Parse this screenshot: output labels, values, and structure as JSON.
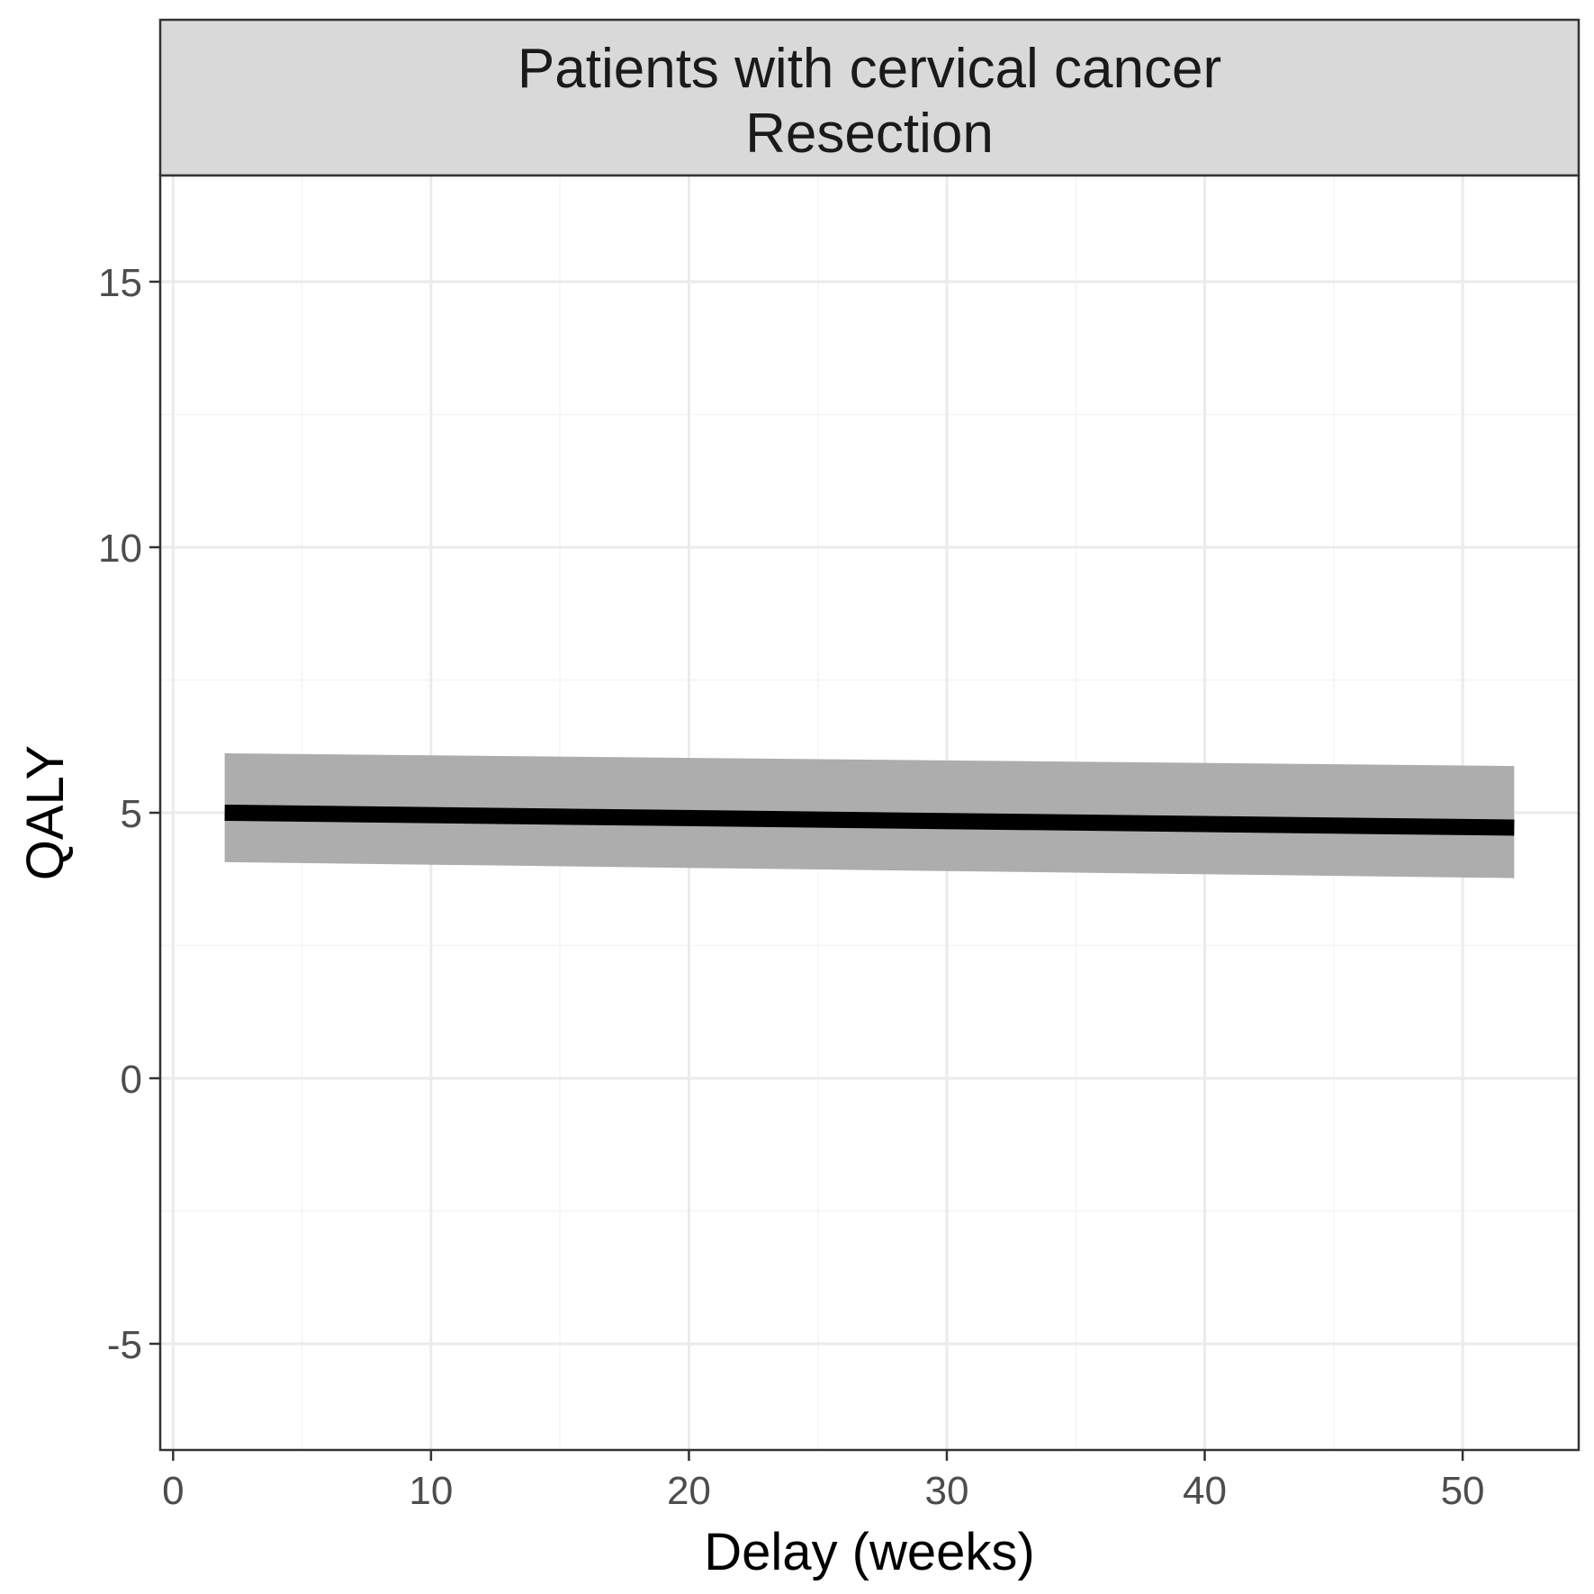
{
  "chart_data": {
    "type": "line",
    "title": "Patients with cervical cancer",
    "subtitle": "Resection",
    "xlabel": "Delay (weeks)",
    "ylabel": "QALY",
    "xlim": [
      -0.5,
      54.5
    ],
    "ylim": [
      -7.0,
      17.0
    ],
    "x_ticks": [
      0,
      10,
      20,
      30,
      40,
      50
    ],
    "x_tick_labels": [
      "0",
      "10",
      "20",
      "30",
      "40",
      "50"
    ],
    "y_ticks": [
      -5,
      0,
      5,
      10,
      15
    ],
    "y_tick_labels": [
      "-5",
      "0",
      "5",
      "10",
      "15"
    ],
    "x_minor_ticks": [
      5,
      15,
      25,
      35,
      45
    ],
    "y_minor_ticks": [
      -2.5,
      2.5,
      7.5,
      12.5
    ],
    "grid": true,
    "series": [
      {
        "x": [
          2,
          52
        ],
        "y": [
          5.0,
          4.72
        ],
        "lower": [
          4.07,
          3.77
        ],
        "upper": [
          6.12,
          5.88
        ],
        "line_color": "#000000",
        "ribbon_color": "#adadad"
      }
    ],
    "colors": {
      "strip_fill": "#d9d9d9",
      "grid_major": "#ebebeb",
      "grid_minor": "#f5f5f5",
      "frame": "#333333"
    }
  }
}
